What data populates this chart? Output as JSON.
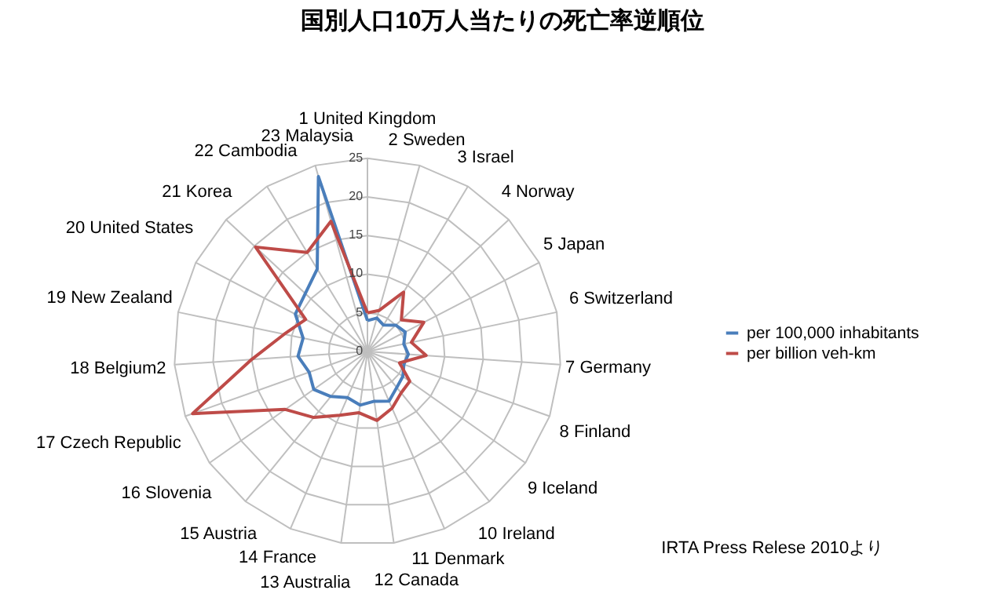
{
  "chart_data": {
    "type": "radar",
    "title": "国別人口10万人当たりの死亡率逆順位",
    "categories": [
      "1 United Kingdom",
      "2 Sweden",
      "3 Israel",
      "4 Norway",
      "5 Japan",
      "6 Switzerland",
      "7 Germany",
      "8 Finland",
      "9 Iceland",
      "10 Ireland",
      "11 Denmark",
      "12 Canada",
      "13 Australia",
      "14 France",
      "15 Austria",
      "16 Slovenia",
      "17 Czech Republic",
      "18 Belgium2",
      "19 New Zealand",
      "20 United States",
      "21 Korea",
      "22 Cambodia",
      "23 Malaysia"
    ],
    "series": [
      {
        "name": "per 100,000 inhabitants",
        "color": "#4a7ebb",
        "values": [
          4,
          4.5,
          4,
          5,
          5.5,
          4.8,
          5.3,
          5,
          5.6,
          6,
          7,
          6.5,
          7,
          6.5,
          7.5,
          8.5,
          8,
          9,
          8.5,
          10.5,
          11,
          12.5,
          23.5
        ]
      },
      {
        "name": "per billion veh-km",
        "color": "#be4b48",
        "values": [
          5,
          5.5,
          9,
          6,
          8.2,
          5.8,
          7.6,
          4.4,
          6.7,
          6.9,
          8,
          9,
          8,
          9,
          11,
          13,
          24,
          15,
          11,
          9,
          19.8,
          15,
          17.5
        ]
      }
    ],
    "ylim": [
      0,
      25
    ],
    "yticks": [
      0,
      5,
      10,
      15,
      20,
      25
    ],
    "grid": true,
    "legend": "right",
    "marker": "none",
    "annotations": [
      "IRTA Press Relese 2010より"
    ]
  }
}
